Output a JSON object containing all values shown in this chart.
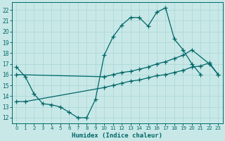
{
  "xlabel": "Humidex (Indice chaleur)",
  "bg_color": "#c8e8e8",
  "grid_color": "#a8d4d4",
  "line_color": "#006666",
  "xlim": [
    -0.5,
    23.5
  ],
  "ylim": [
    11.5,
    22.7
  ],
  "xticks": [
    0,
    1,
    2,
    3,
    4,
    5,
    6,
    7,
    8,
    9,
    10,
    11,
    12,
    13,
    14,
    15,
    16,
    17,
    18,
    19,
    20,
    21,
    22,
    23
  ],
  "yticks": [
    12,
    13,
    14,
    15,
    16,
    17,
    18,
    19,
    20,
    21,
    22
  ],
  "line1_x": [
    0,
    1,
    2,
    3,
    4,
    5,
    6,
    7,
    8,
    9,
    10,
    11,
    12,
    13,
    14,
    15,
    16,
    17,
    18,
    19,
    20,
    21
  ],
  "line1_y": [
    16.7,
    15.8,
    14.2,
    13.3,
    13.2,
    13.0,
    12.5,
    12.0,
    12.0,
    13.7,
    17.8,
    19.5,
    20.6,
    21.3,
    21.3,
    20.5,
    21.8,
    22.2,
    19.3,
    18.3,
    17.0,
    16.0
  ],
  "line2_x": [
    0,
    10,
    11,
    12,
    13,
    14,
    15,
    16,
    17,
    18,
    19,
    20,
    22,
    23
  ],
  "line2_y": [
    16.0,
    15.8,
    16.0,
    16.2,
    16.3,
    16.5,
    16.7,
    17.0,
    17.2,
    17.5,
    17.8,
    18.3,
    17.0,
    16.0
  ],
  "line3_x": [
    0,
    1,
    10,
    11,
    12,
    13,
    14,
    15,
    16,
    17,
    18,
    19,
    20,
    21,
    22,
    23
  ],
  "line3_y": [
    13.5,
    13.5,
    14.8,
    15.0,
    15.2,
    15.4,
    15.5,
    15.7,
    15.9,
    16.0,
    16.2,
    16.4,
    16.7,
    16.8,
    17.1,
    16.0
  ]
}
